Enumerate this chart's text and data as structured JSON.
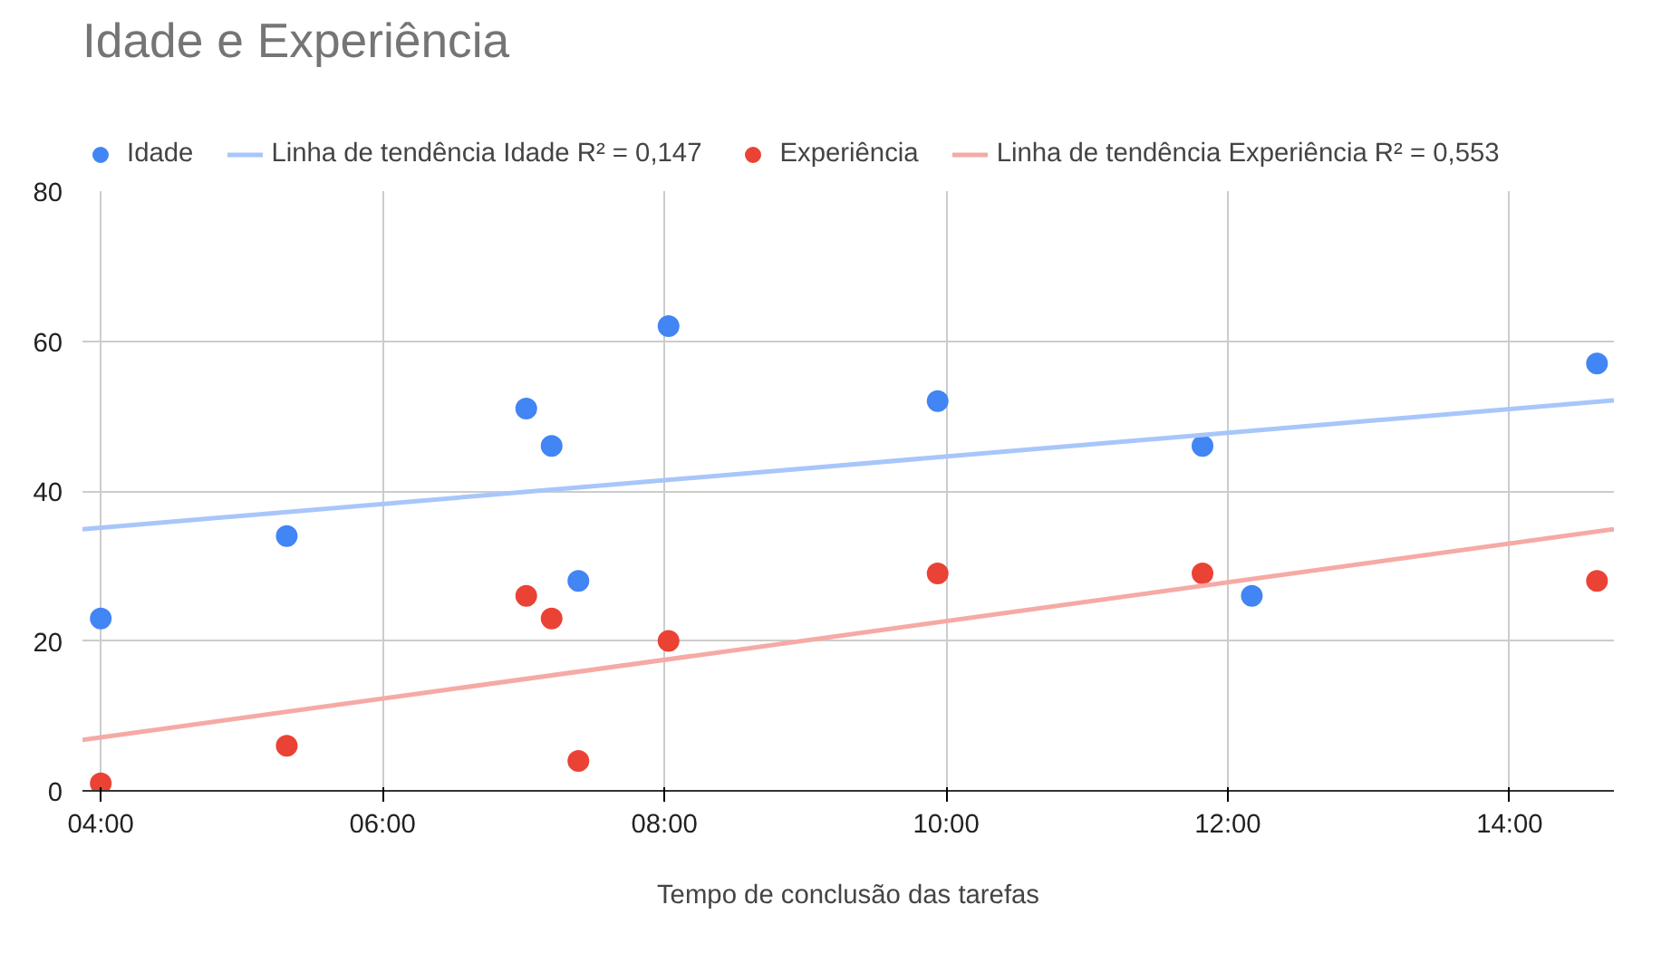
{
  "chart_data": {
    "type": "scatter",
    "title": "Idade e Experiência",
    "xlabel": "Tempo de conclusão das tarefas",
    "xlim": [
      3.87,
      14.74
    ],
    "xticks": [
      {
        "value": 4,
        "label": "04:00"
      },
      {
        "value": 6,
        "label": "06:00"
      },
      {
        "value": 8,
        "label": "08:00"
      },
      {
        "value": 10,
        "label": "10:00"
      },
      {
        "value": 12,
        "label": "12:00"
      },
      {
        "value": 14,
        "label": "14:00"
      }
    ],
    "ylim": [
      0,
      80
    ],
    "yticks": [
      0,
      20,
      40,
      60,
      80
    ],
    "grid": true,
    "legend": "top",
    "marker": "circle",
    "series": [
      {
        "name": "Idade",
        "type": "scatter",
        "color": "#4285f4",
        "x": [
          4.0,
          5.32,
          7.02,
          7.2,
          7.39,
          8.03,
          9.94,
          11.82,
          12.17,
          14.62
        ],
        "values": [
          23,
          34,
          51,
          46,
          28,
          62,
          52,
          46,
          26,
          57
        ]
      },
      {
        "name": "Linha de tendência Idade R² = 0,147",
        "type": "line",
        "marker": "none",
        "color": "#a8c6fa",
        "x": [
          3.87,
          14.74
        ],
        "values": [
          34.9,
          52.1
        ]
      },
      {
        "name": "Experiência",
        "type": "scatter",
        "color": "#ea4335",
        "x": [
          4.0,
          5.32,
          7.02,
          7.2,
          7.39,
          8.03,
          9.94,
          11.82,
          14.62
        ],
        "values": [
          1,
          6,
          26,
          23,
          4,
          20,
          29,
          29,
          28
        ]
      },
      {
        "name": "Linha de tendência Experiência R² = 0,553",
        "type": "line",
        "marker": "none",
        "color": "#f5aaa5",
        "x": [
          3.87,
          14.74
        ],
        "values": [
          6.8,
          34.9
        ]
      }
    ]
  }
}
